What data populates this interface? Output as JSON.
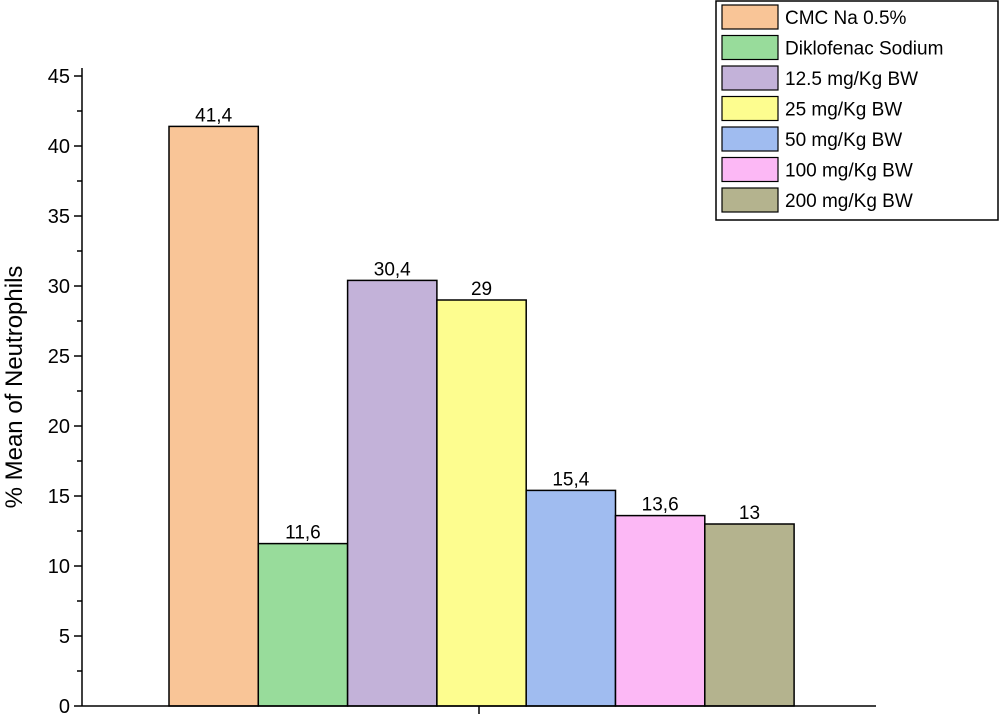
{
  "chart_data": {
    "type": "bar",
    "title": "",
    "xlabel": "",
    "ylabel": "% Mean of Neutrophils",
    "ylim": [
      0,
      45
    ],
    "y_ticks": [
      0,
      5,
      10,
      15,
      20,
      25,
      30,
      35,
      40,
      45
    ],
    "y_tick_labels": [
      "0",
      "5",
      "10",
      "15",
      "20",
      "25",
      "30",
      "35",
      "40",
      "45"
    ],
    "legend_position": "top-right",
    "series": [
      {
        "name": "CMC Na 0.5%",
        "value": 41.4,
        "label": "41,4",
        "color": "#f9c597"
      },
      {
        "name": "Diklofenac Sodium",
        "value": 11.6,
        "label": "11,6",
        "color": "#98dc9b"
      },
      {
        "name": "12.5 mg/Kg BW",
        "value": 30.4,
        "label": "30,4",
        "color": "#c3b2d9"
      },
      {
        "name": "25 mg/Kg BW",
        "value": 29,
        "label": "29",
        "color": "#fdfd8f"
      },
      {
        "name": "50 mg/Kg BW",
        "value": 15.4,
        "label": "15,4",
        "color": "#a0bcf0"
      },
      {
        "name": "100 mg/Kg BW",
        "value": 13.6,
        "label": "13,6",
        "color": "#fcb8f5"
      },
      {
        "name": "200 mg/Kg BW",
        "value": 13,
        "label": "13",
        "color": "#b4b38e"
      }
    ]
  }
}
